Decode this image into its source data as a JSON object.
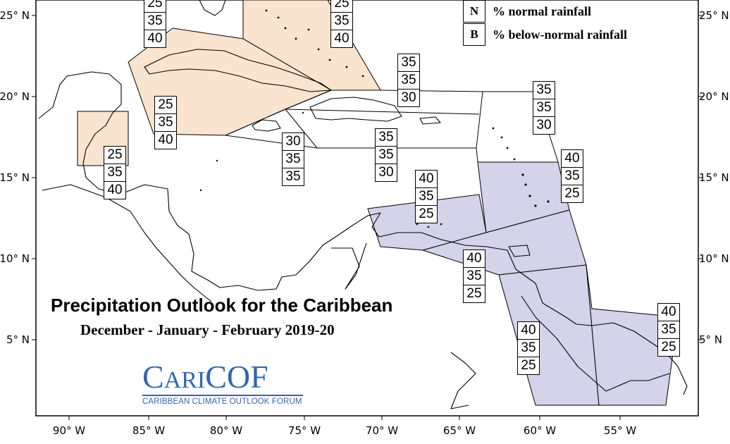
{
  "title": "Precipitation Outlook for the Caribbean",
  "subtitle": "December - January - February 2019-20",
  "legend": [
    {
      "key": "N",
      "text": "% normal rainfall"
    },
    {
      "key": "B",
      "text": "% below-normal rainfall"
    }
  ],
  "logo": {
    "main_big_1": "C",
    "main_small": "ARI",
    "main_big_2": "COF",
    "sub": "CARIBBEAN CLIMATE OUTLOOK FORUM"
  },
  "axes": {
    "lon_labels": [
      "90° W",
      "85° W",
      "80° W",
      "75° W",
      "70° W",
      "65° W",
      "60° W",
      "55° W"
    ],
    "lat_labels": [
      "25° N",
      "20° N",
      "15° N",
      "10° N",
      "5° N"
    ]
  },
  "colors": {
    "below_normal_region": "#f9e4cf",
    "above_normal_region": "#d4d3ea",
    "coastline": "#000000",
    "zone_border": "#000000",
    "logo_blue": "#2f67b0"
  },
  "regions": [
    {
      "id": "northern-bahamas",
      "values": [
        "25",
        "35",
        "40"
      ],
      "shade": "below"
    },
    {
      "id": "southern-bahamas",
      "values": [
        "25",
        "35",
        "40"
      ],
      "shade": "below"
    },
    {
      "id": "cuba",
      "values": [
        "25",
        "35",
        "40"
      ],
      "shade": "below"
    },
    {
      "id": "belize",
      "values": [
        "25",
        "35",
        "40"
      ],
      "shade": "below"
    },
    {
      "id": "jamaica",
      "values": [
        "30",
        "35",
        "35"
      ],
      "shade": "none"
    },
    {
      "id": "hispaniola",
      "values": [
        "35",
        "35",
        "30"
      ],
      "shade": "none"
    },
    {
      "id": "turks-caicos",
      "values": [
        "35",
        "35",
        "30"
      ],
      "shade": "none"
    },
    {
      "id": "leeward-islands",
      "values": [
        "35",
        "35",
        "30"
      ],
      "shade": "none"
    },
    {
      "id": "windward-islands",
      "values": [
        "40",
        "35",
        "25"
      ],
      "shade": "above"
    },
    {
      "id": "abc-islands",
      "values": [
        "40",
        "35",
        "25"
      ],
      "shade": "above"
    },
    {
      "id": "trinidad-tobago",
      "values": [
        "40",
        "35",
        "25"
      ],
      "shade": "above"
    },
    {
      "id": "guyana",
      "values": [
        "40",
        "35",
        "25"
      ],
      "shade": "above"
    },
    {
      "id": "suriname-french-guiana",
      "values": [
        "40",
        "35",
        "25"
      ],
      "shade": "above"
    }
  ]
}
